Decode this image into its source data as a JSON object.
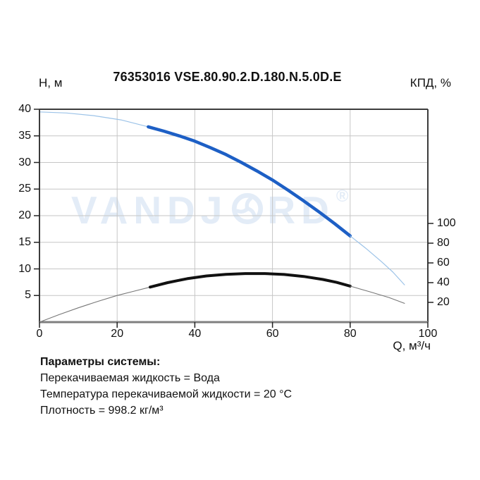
{
  "header": {
    "title": "76353016 VSE.80.90.2.D.180.N.5.0D.E",
    "left_axis_label": "Н, м",
    "right_axis_label": "КПД, %"
  },
  "watermark": {
    "text_left": "VANDJ",
    "text_right": "RD",
    "registered": "®",
    "color": "#E3ECF7"
  },
  "params": {
    "heading": "Параметры системы:",
    "lines": [
      "Перекачиваемая жидкость = Вода",
      "Температура перекачиваемой жидкости = 20 °C",
      "Плотность = 998.2 кг/м³"
    ]
  },
  "chart_data": {
    "type": "line",
    "title": "76353016 VSE.80.90.2.D.180.N.5.0D.E",
    "x": {
      "label": "Q, м³/ч",
      "min": 0,
      "max": 100,
      "ticks": [
        0,
        20,
        40,
        60,
        80,
        100
      ],
      "gridlines": [
        20,
        40,
        60,
        80
      ]
    },
    "y_left": {
      "label": "Н, м",
      "min": 0,
      "max": 40,
      "ticks": [
        40,
        35,
        30,
        25,
        20,
        15,
        10,
        5
      ],
      "gridlines": [
        5,
        10,
        15,
        20,
        25,
        30,
        35
      ]
    },
    "y_right": {
      "label": "КПД, %",
      "min": 0,
      "max": 108,
      "ticks": [
        100,
        80,
        60,
        40,
        20
      ]
    },
    "legend": "none",
    "grid": true,
    "colors": {
      "grid": "#C6C6C6",
      "border": "#3C3C3C",
      "bottom_border": "#7F7F7F",
      "tick": "#222222",
      "head_main": "#1D5FC5",
      "head_thin": "#9CC3E8",
      "eff_main": "#111111",
      "eff_thin": "#777777"
    },
    "series": [
      {
        "name": "head-curve-thin-left",
        "axis": "left",
        "color_key": "head_thin",
        "width": 1.2,
        "points": [
          [
            0,
            39.5
          ],
          [
            7,
            39.3
          ],
          [
            14,
            38.8
          ],
          [
            21,
            38.0
          ],
          [
            28,
            36.7
          ]
        ]
      },
      {
        "name": "head-curve-duty-range",
        "axis": "left",
        "color_key": "head_main",
        "width": 4.5,
        "points": [
          [
            28,
            36.7
          ],
          [
            32,
            35.9
          ],
          [
            36,
            35.0
          ],
          [
            40,
            34.0
          ],
          [
            44,
            32.8
          ],
          [
            48,
            31.5
          ],
          [
            52,
            30.0
          ],
          [
            56,
            28.4
          ],
          [
            60,
            26.7
          ],
          [
            64,
            24.8
          ],
          [
            68,
            22.8
          ],
          [
            72,
            20.7
          ],
          [
            76,
            18.5
          ],
          [
            80,
            16.2
          ]
        ]
      },
      {
        "name": "head-curve-thin-right",
        "axis": "left",
        "color_key": "head_thin",
        "width": 1.2,
        "points": [
          [
            80,
            16.2
          ],
          [
            84,
            13.9
          ],
          [
            88,
            11.4
          ],
          [
            91,
            9.4
          ],
          [
            94,
            7.0
          ]
        ]
      },
      {
        "name": "efficiency-curve-thin-left",
        "axis": "right",
        "color_key": "eff_thin",
        "width": 1.1,
        "points": [
          [
            0,
            0
          ],
          [
            5,
            7.5
          ],
          [
            10,
            14.5
          ],
          [
            15,
            21.0
          ],
          [
            20,
            27.0
          ],
          [
            24,
            31.0
          ],
          [
            28.5,
            35.5
          ]
        ]
      },
      {
        "name": "efficiency-curve-duty-range",
        "axis": "right",
        "color_key": "eff_main",
        "width": 4,
        "points": [
          [
            28.5,
            35.5
          ],
          [
            33,
            40.0
          ],
          [
            38,
            44.0
          ],
          [
            43,
            46.8
          ],
          [
            48,
            48.4
          ],
          [
            53,
            49.2
          ],
          [
            58,
            49.2
          ],
          [
            63,
            48.3
          ],
          [
            68,
            46.3
          ],
          [
            73,
            43.2
          ],
          [
            76.5,
            40.3
          ],
          [
            80,
            36.5
          ]
        ]
      },
      {
        "name": "efficiency-curve-thin-right",
        "axis": "right",
        "color_key": "eff_thin",
        "width": 1.1,
        "points": [
          [
            80,
            36.5
          ],
          [
            85,
            30.8
          ],
          [
            90,
            24.9
          ],
          [
            94,
            19.0
          ]
        ]
      }
    ]
  }
}
